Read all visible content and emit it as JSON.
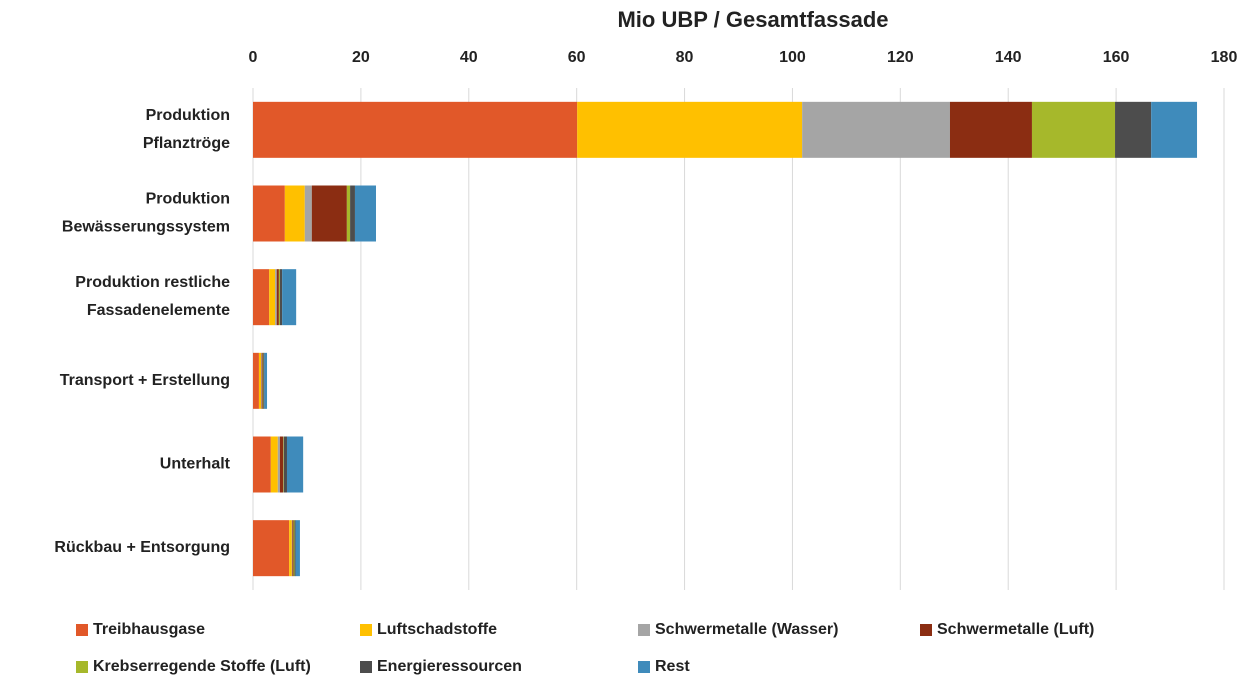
{
  "chart_data": {
    "type": "stacked_barh",
    "title": "Mio UBP / Gesamtfassade",
    "categories": [
      [
        "Produktion",
        "Pflanztröge"
      ],
      [
        "Produktion",
        "Bewässerungssystem"
      ],
      [
        "Produktion restliche",
        "Fassadenelemente"
      ],
      [
        "Transport + Erstellung"
      ],
      [
        "Unterhalt"
      ],
      [
        "Rückbau + Entsorgung"
      ]
    ],
    "series": [
      {
        "name": "Treibhausgase",
        "color": "#e15829",
        "values": [
          60.1,
          5.9,
          3.0,
          1.1,
          3.3,
          6.7
        ]
      },
      {
        "name": "Luftschadstoffe",
        "color": "#ffc000",
        "values": [
          41.7,
          3.7,
          1.1,
          0.4,
          1.3,
          0.5
        ]
      },
      {
        "name": "Schwermetalle (Wasser)",
        "color": "#a5a5a5",
        "values": [
          27.4,
          1.3,
          0.3,
          0.1,
          0.4,
          0.1
        ]
      },
      {
        "name": "Schwermetalle (Luft)",
        "color": "#8b2d12",
        "values": [
          15.2,
          6.5,
          0.4,
          0.2,
          0.6,
          0.2
        ]
      },
      {
        "name": "Krebserregende Stoffe (Luft)",
        "color": "#a6b82b",
        "values": [
          15.4,
          0.6,
          0.2,
          0.1,
          0.1,
          0.2
        ]
      },
      {
        "name": "Energieressourcen",
        "color": "#4d4d4d",
        "values": [
          6.7,
          0.9,
          0.4,
          0.2,
          0.6,
          0.2
        ]
      },
      {
        "name": "Rest",
        "color": "#3f8bbb",
        "values": [
          8.5,
          3.9,
          2.6,
          0.5,
          3.0,
          0.8
        ]
      }
    ],
    "xlim": [
      0,
      180
    ],
    "xticks": [
      0,
      20,
      40,
      60,
      80,
      100,
      120,
      140,
      160,
      180
    ],
    "grid": true,
    "legend": "bottom"
  }
}
